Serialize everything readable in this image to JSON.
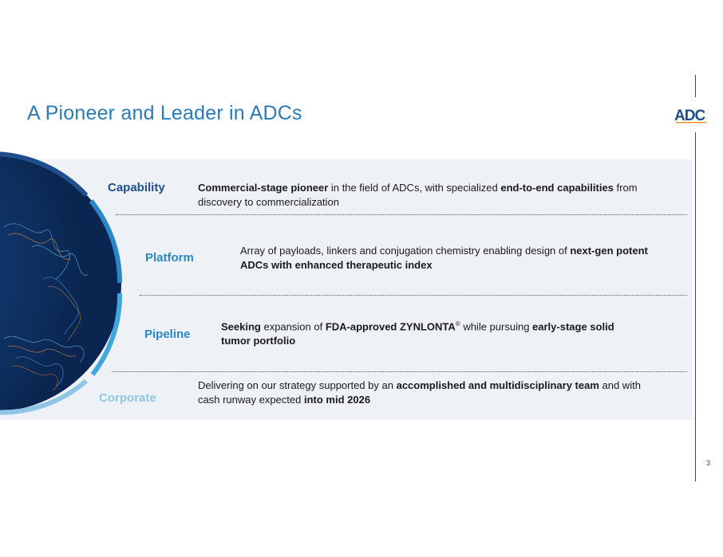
{
  "page": {
    "title": "A Pioneer and Leader in ADCs",
    "page_number": "3",
    "logo_text": "ADC"
  },
  "colors": {
    "title": "#2a7bb8",
    "capability": "#1f4e8c",
    "platform": "#2a86c4",
    "pipeline": "#2a86c4",
    "corporate": "#8fc6e6",
    "panel": "#eef2f6",
    "accent_rule": "#1c4f86"
  },
  "rows": [
    {
      "label": "Capability",
      "segments": [
        {
          "text": "Commercial-stage pioneer",
          "bold": true
        },
        {
          "text": " in the field of ADCs, with specialized ",
          "bold": false
        },
        {
          "text": "end-to-end capabilities",
          "bold": true
        },
        {
          "text": " from discovery to commercialization",
          "bold": false
        }
      ]
    },
    {
      "label": "Platform",
      "segments": [
        {
          "text": "Array of payloads, linkers and conjugation chemistry enabling design of ",
          "bold": false
        },
        {
          "text": "next-gen potent ADCs with enhanced therapeutic index",
          "bold": true
        }
      ]
    },
    {
      "label": "Pipeline",
      "segments": [
        {
          "text": "Seeking",
          "bold": true
        },
        {
          "text": " expansion of ",
          "bold": false
        },
        {
          "text": "FDA-approved ZYNLONTA",
          "bold": true
        },
        {
          "text": "®",
          "bold": false,
          "sup": true
        },
        {
          "text": " while pursuing ",
          "bold": false
        },
        {
          "text": "early-stage solid tumor portfolio",
          "bold": true
        }
      ]
    },
    {
      "label": "Corporate",
      "segments": [
        {
          "text": "Delivering on our strategy supported by an ",
          "bold": false
        },
        {
          "text": "accomplished and multidisciplinary team",
          "bold": true
        },
        {
          "text": " and with cash runway expected ",
          "bold": false
        },
        {
          "text": "into mid 2026",
          "bold": true
        }
      ]
    }
  ]
}
